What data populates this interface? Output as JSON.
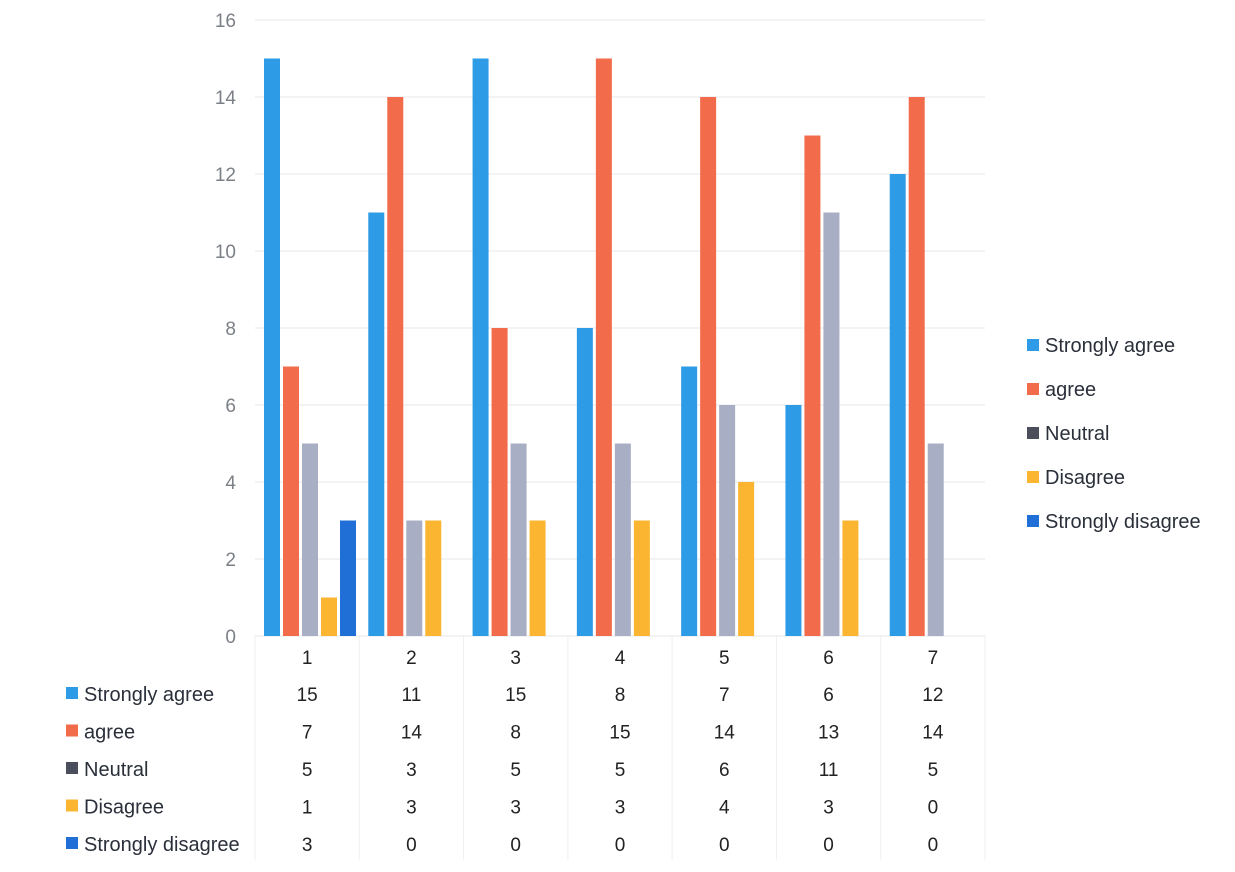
{
  "chart_data": {
    "type": "bar",
    "title": "",
    "xlabel": "",
    "ylabel": "",
    "ylim": [
      0,
      16
    ],
    "yticks": [
      0,
      2,
      4,
      6,
      8,
      10,
      12,
      14,
      16
    ],
    "grid": true,
    "legend_position": "right",
    "data_table": true,
    "categories": [
      "1",
      "2",
      "3",
      "4",
      "5",
      "6",
      "7"
    ],
    "series": [
      {
        "name": "Strongly agree",
        "color": "#2e9be6",
        "values": [
          15,
          11,
          15,
          8,
          7,
          6,
          12
        ]
      },
      {
        "name": "agree",
        "color": "#f26b4b",
        "values": [
          7,
          14,
          8,
          15,
          14,
          13,
          14
        ]
      },
      {
        "name": "Neutral",
        "color": "#a8aec3",
        "legend_color": "#4b4f5c",
        "values": [
          5,
          3,
          5,
          5,
          6,
          11,
          5
        ]
      },
      {
        "name": "Disagree",
        "color": "#fcb530",
        "values": [
          1,
          3,
          3,
          3,
          4,
          3,
          0
        ]
      },
      {
        "name": "Strongly disagree",
        "color": "#1f6fd6",
        "values": [
          3,
          0,
          0,
          0,
          0,
          0,
          0
        ]
      }
    ]
  }
}
